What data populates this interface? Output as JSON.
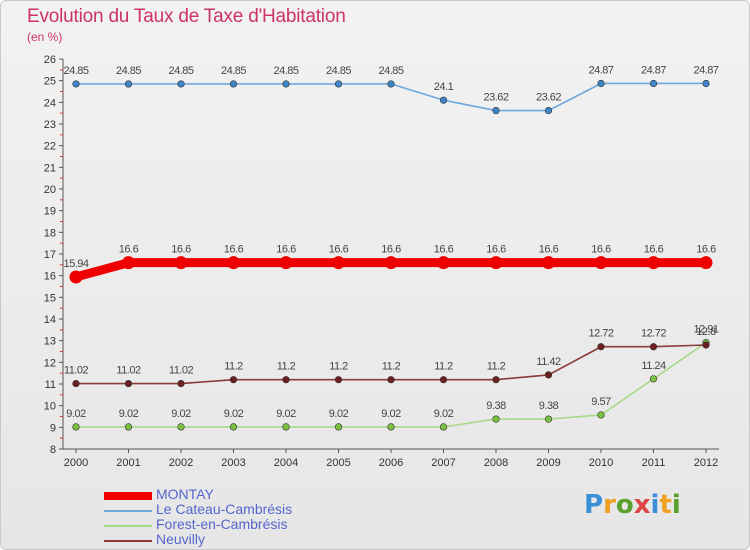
{
  "header": {
    "title": "Evolution du Taux de Taxe d'Habitation",
    "unit": "(en %)"
  },
  "logo": {
    "text": "Proxiti"
  },
  "chart_data": {
    "type": "line",
    "title": "Evolution du Taux de Taxe d'Habitation",
    "ylabel": "(en %)",
    "xlabel": "",
    "x": [
      "2000",
      "2001",
      "2002",
      "2003",
      "2004",
      "2005",
      "2006",
      "2007",
      "2008",
      "2009",
      "2010",
      "2011",
      "2012"
    ],
    "ylim": [
      8,
      26
    ],
    "yticks": [
      8,
      9,
      10,
      11,
      12,
      13,
      14,
      15,
      16,
      17,
      18,
      19,
      20,
      21,
      22,
      23,
      24,
      25,
      26
    ],
    "grid": false,
    "legend_position": "bottom-left",
    "series": [
      {
        "name": "MONTAY",
        "color": "#ee0000",
        "marker_color": "#ee0000",
        "emphasis": "thick",
        "values": [
          15.94,
          16.6,
          16.6,
          16.6,
          16.6,
          16.6,
          16.6,
          16.6,
          16.6,
          16.6,
          16.6,
          16.6,
          16.6
        ],
        "labels": [
          "15.94",
          "16.6",
          "16.6",
          "16.6",
          "16.6",
          "16.6",
          "16.6",
          "16.6",
          "16.6",
          "16.6",
          "16.6",
          "16.6",
          "16.6"
        ]
      },
      {
        "name": "Le Cateau-Cambrésis",
        "color": "#6fa8dc",
        "marker_color": "#3d85c6",
        "emphasis": "normal",
        "values": [
          24.85,
          24.85,
          24.85,
          24.85,
          24.85,
          24.85,
          24.85,
          24.1,
          23.62,
          23.62,
          24.87,
          24.87,
          24.87
        ],
        "labels": [
          "24.85",
          "24.85",
          "24.85",
          "24.85",
          "24.85",
          "24.85",
          "24.85",
          "24.1",
          "23.62",
          "23.62",
          "24.87",
          "24.87",
          "24.87"
        ]
      },
      {
        "name": "Forest-en-Cambrésis",
        "color": "#a8d88a",
        "marker_color": "#7ac142",
        "emphasis": "normal",
        "values": [
          9.02,
          9.02,
          9.02,
          9.02,
          9.02,
          9.02,
          9.02,
          9.02,
          9.38,
          9.38,
          9.57,
          11.24,
          12.91
        ],
        "labels": [
          "9.02",
          "9.02",
          "9.02",
          "9.02",
          "9.02",
          "9.02",
          "9.02",
          "9.02",
          "9.38",
          "9.38",
          "9.57",
          "11.24",
          "12.91"
        ]
      },
      {
        "name": "Neuvilly",
        "color": "#8b3a3a",
        "marker_color": "#6b1f1f",
        "emphasis": "normal",
        "values": [
          11.02,
          11.02,
          11.02,
          11.2,
          11.2,
          11.2,
          11.2,
          11.2,
          11.2,
          11.42,
          12.72,
          12.72,
          12.8
        ],
        "labels": [
          "11.02",
          "11.02",
          "11.02",
          "11.2",
          "11.2",
          "11.2",
          "11.2",
          "11.2",
          "11.2",
          "11.42",
          "12.72",
          "12.72",
          "12.8"
        ]
      }
    ]
  }
}
